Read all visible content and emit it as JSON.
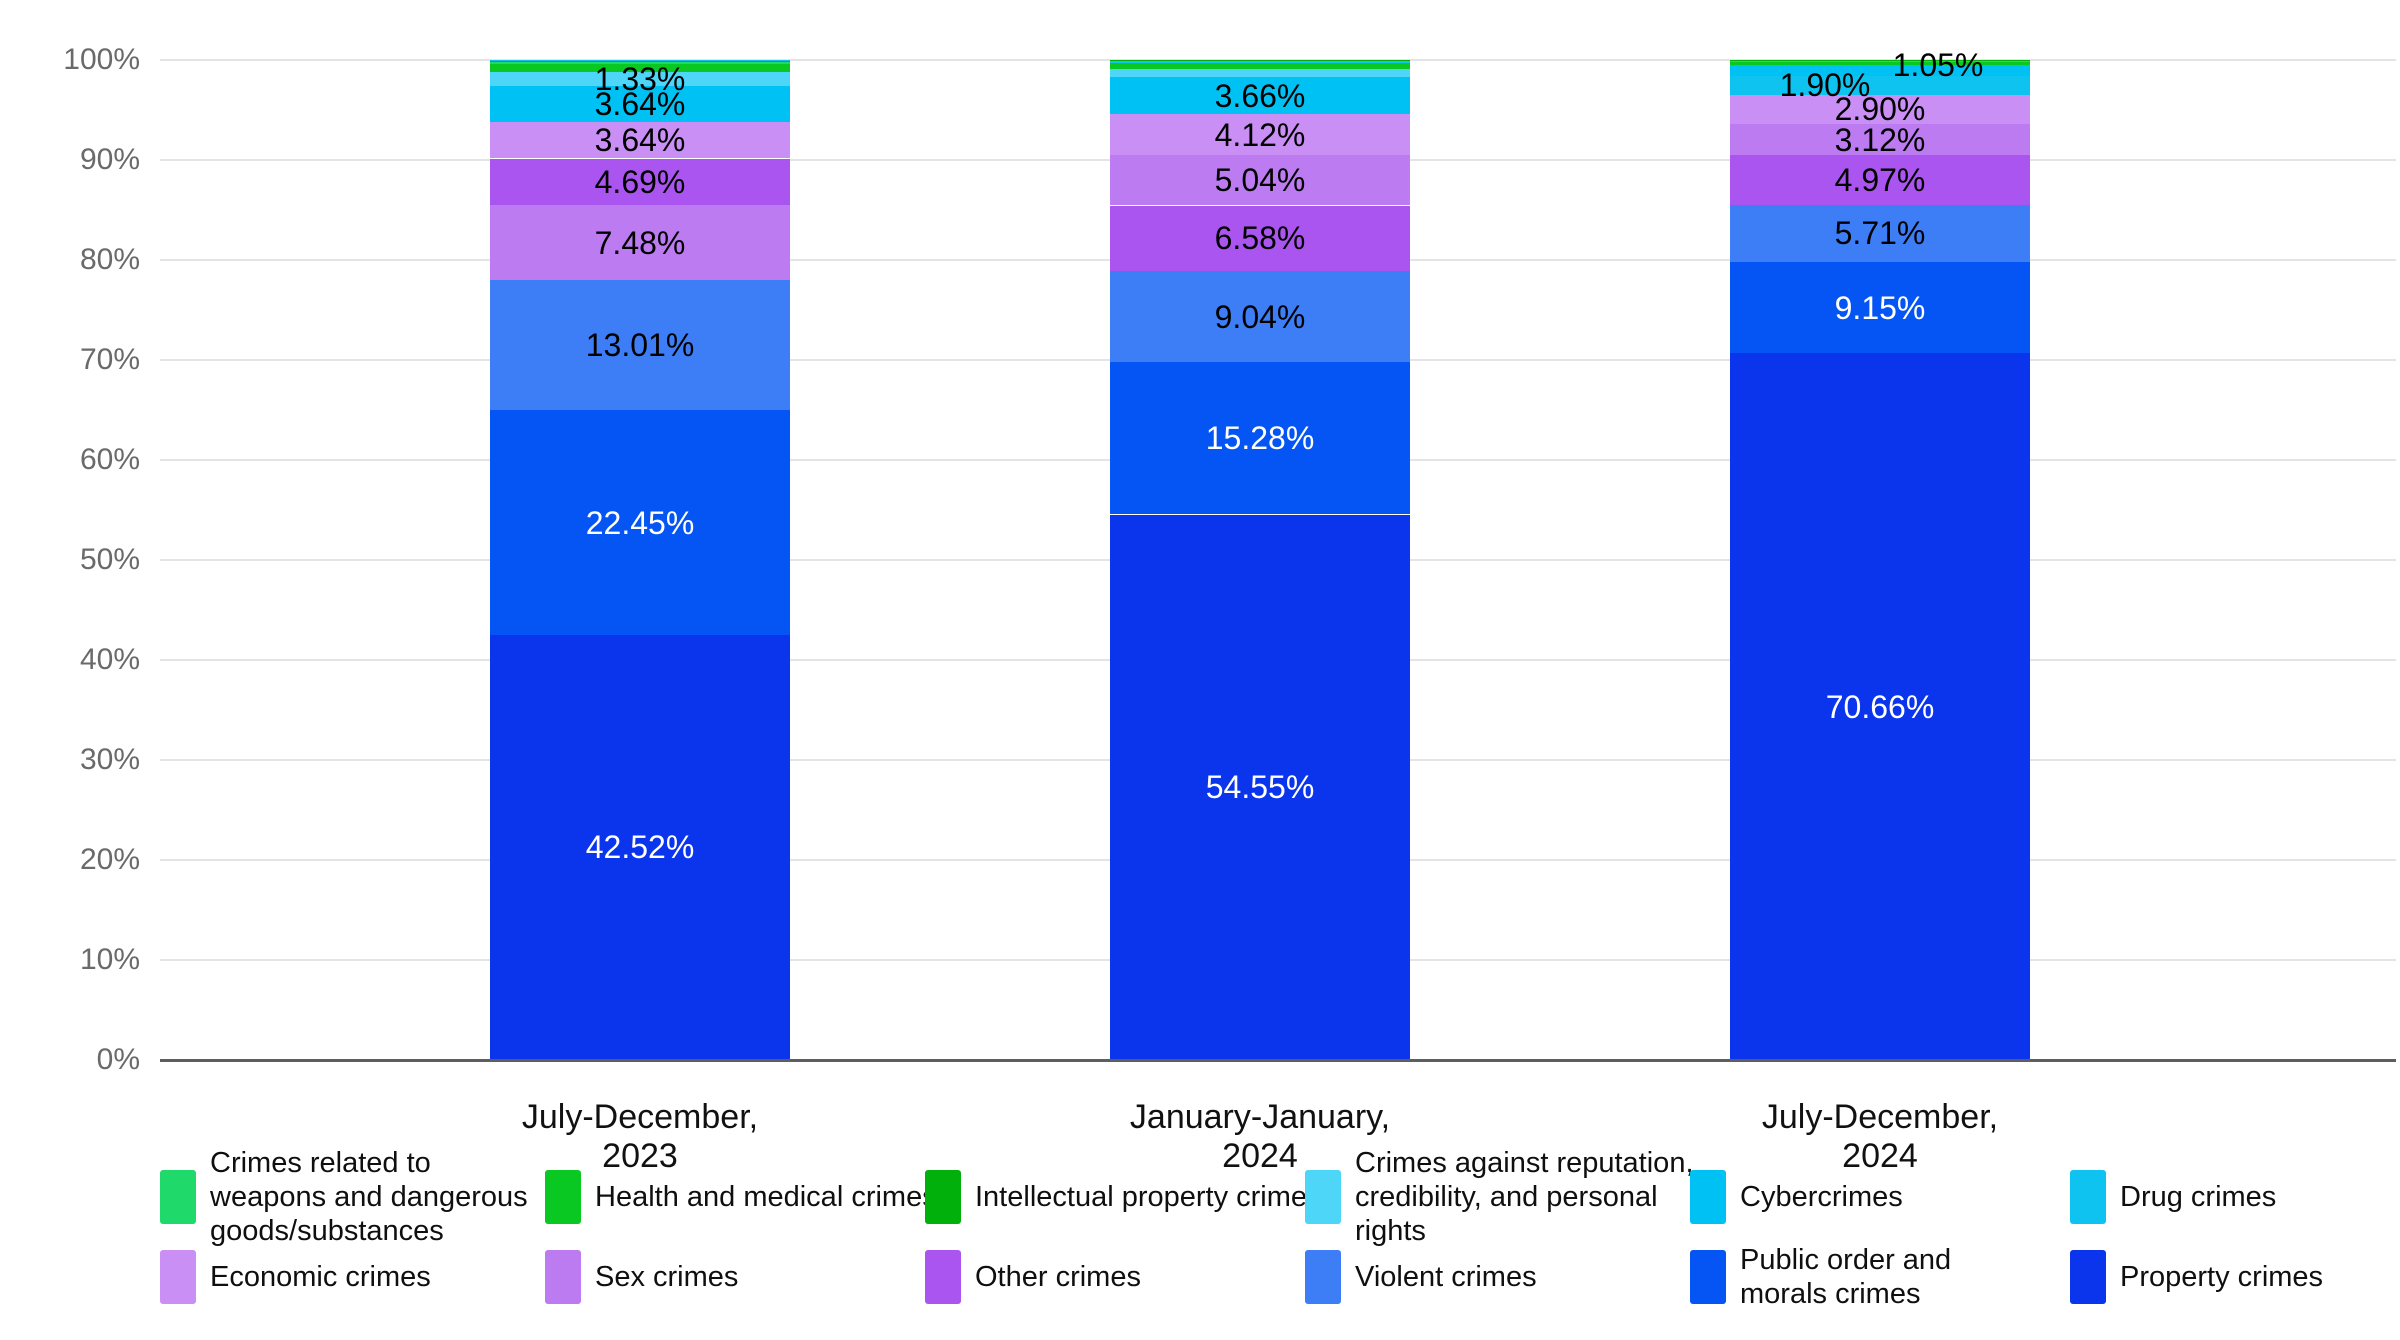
{
  "chart_data": {
    "type": "bar",
    "variant": "100-percent-stacked-column",
    "title": "",
    "grid": "horizontal-on",
    "legend_position": "bottom",
    "categories": [
      "July-December, 2023",
      "January-January, 2024",
      "July-December, 2024"
    ],
    "y_axis": {
      "min": 0,
      "max": 100,
      "tick_labels": [
        "0%",
        "10%",
        "20%",
        "30%",
        "40%",
        "50%",
        "60%",
        "70%",
        "80%",
        "90%",
        "100%"
      ]
    },
    "legend": [
      {
        "label": "Crimes related to\nweapons and dangerous\ngoods/substances",
        "color": "#20D96B"
      },
      {
        "label": "Health and medical crimes",
        "color": "#0AC822"
      },
      {
        "label": "Intellectual property crimes",
        "color": "#02B00C"
      },
      {
        "label": "Crimes against reputation,\ncredibility, and personal\nrights",
        "color": "#4ED6F8"
      },
      {
        "label": "Cybercrimes",
        "color": "#00C1F3"
      },
      {
        "label": "Drug crimes",
        "color": "#0FC3F0"
      },
      {
        "label": "Economic crimes",
        "color": "#C98FF5"
      },
      {
        "label": "Sex crimes",
        "color": "#BD7BF2"
      },
      {
        "label": "Other crimes",
        "color": "#AB55F0"
      },
      {
        "label": "Violent crimes",
        "color": "#3D7EF7"
      },
      {
        "label": "Public order and\nmorals crimes",
        "color": "#0455F4"
      },
      {
        "label": "Property crimes",
        "color": "#0A35ED"
      }
    ],
    "bars": [
      {
        "category": "July-December, 2023",
        "segments_bottom_to_top": [
          {
            "series": "Property crimes",
            "value_pct": 42.52,
            "label": "42.52%",
            "text_color": "#FFFFFF"
          },
          {
            "series": "Public order and\nmorals crimes",
            "value_pct": 22.45,
            "label": "22.45%",
            "text_color": "#FFFFFF"
          },
          {
            "series": "Violent crimes",
            "value_pct": 13.01,
            "label": "13.01%",
            "text_color": "#000000"
          },
          {
            "series": "Sex crimes",
            "value_pct": 7.48,
            "label": "7.48%",
            "text_color": "#000000"
          },
          {
            "series": "Other crimes",
            "value_pct": 4.69,
            "label": "4.69%",
            "text_color": "#000000"
          },
          {
            "series": "Economic crimes",
            "value_pct": 3.64,
            "label": "3.64%",
            "text_color": "#000000"
          },
          {
            "series": "Cybercrimes",
            "value_pct": 3.64,
            "label": "3.64%",
            "text_color": "#000000"
          },
          {
            "series": "Crimes against reputation,\ncredibility, and personal\nrights",
            "value_pct": 1.33,
            "label": "1.33%",
            "text_color": "#000000"
          },
          {
            "series": "Health and medical crimes",
            "value_pct": 0.85,
            "label": null,
            "estimated": true
          },
          {
            "series": "Crimes related to\nweapons and dangerous\ngoods/substances",
            "value_pct": 0.25,
            "label": null,
            "estimated": true
          },
          {
            "series": "Intellectual property crimes",
            "value_pct": 0.08,
            "label": null,
            "estimated": true
          },
          {
            "series": "Drug crimes",
            "value_pct": 0.06,
            "label": null,
            "estimated": true
          }
        ]
      },
      {
        "category": "January-January, 2024",
        "segments_bottom_to_top": [
          {
            "series": "Property crimes",
            "value_pct": 54.55,
            "label": "54.55%",
            "text_color": "#FFFFFF"
          },
          {
            "series": "Public order and\nmorals crimes",
            "value_pct": 15.28,
            "label": "15.28%",
            "text_color": "#FFFFFF"
          },
          {
            "series": "Violent crimes",
            "value_pct": 9.04,
            "label": "9.04%",
            "text_color": "#000000"
          },
          {
            "series": "Other crimes",
            "value_pct": 6.58,
            "label": "6.58%",
            "text_color": "#000000"
          },
          {
            "series": "Sex crimes",
            "value_pct": 5.04,
            "label": "5.04%",
            "text_color": "#000000"
          },
          {
            "series": "Economic crimes",
            "value_pct": 4.12,
            "label": "4.12%",
            "text_color": "#000000"
          },
          {
            "series": "Cybercrimes",
            "value_pct": 3.66,
            "label": "3.66%",
            "text_color": "#000000"
          },
          {
            "series": "Crimes against reputation,\ncredibility, and personal\nrights",
            "value_pct": 0.8,
            "label": null,
            "estimated": true
          },
          {
            "series": "Health and medical crimes",
            "value_pct": 0.68,
            "label": null,
            "estimated": true
          },
          {
            "series": "Drug crimes",
            "value_pct": 0.1,
            "label": null,
            "estimated": true
          },
          {
            "series": "Crimes related to\nweapons and dangerous\ngoods/substances",
            "value_pct": 0.1,
            "label": null,
            "estimated": true
          },
          {
            "series": "Intellectual property crimes",
            "value_pct": 0.05,
            "label": null,
            "estimated": true
          }
        ]
      },
      {
        "category": "July-December, 2024",
        "segments_bottom_to_top": [
          {
            "series": "Property crimes",
            "value_pct": 70.66,
            "label": "70.66%",
            "text_color": "#FFFFFF"
          },
          {
            "series": "Public order and\nmorals crimes",
            "value_pct": 9.15,
            "label": "9.15%",
            "text_color": "#FFFFFF"
          },
          {
            "series": "Violent crimes",
            "value_pct": 5.71,
            "label": "5.71%",
            "text_color": "#000000"
          },
          {
            "series": "Other crimes",
            "value_pct": 4.97,
            "label": "4.97%",
            "text_color": "#000000"
          },
          {
            "series": "Sex crimes",
            "value_pct": 3.12,
            "label": "3.12%",
            "text_color": "#000000"
          },
          {
            "series": "Economic crimes",
            "value_pct": 2.9,
            "label": "2.90%",
            "text_color": "#000000"
          },
          {
            "series": "Drug crimes",
            "value_pct": 1.9,
            "label": "1.90%",
            "text_color": "#000000",
            "label_dx": -55,
            "label_dy": 0
          },
          {
            "series": "Cybercrimes",
            "value_pct": 1.05,
            "label": "1.05%",
            "text_color": "#000000",
            "label_dx": 58,
            "label_dy": -6
          },
          {
            "series": "Health and medical crimes",
            "value_pct": 0.35,
            "label": null,
            "estimated": true
          },
          {
            "series": "Crimes related to\nweapons and dangerous\ngoods/substances",
            "value_pct": 0.1,
            "label": null,
            "estimated": true
          },
          {
            "series": "Crimes against reputation,\ncredibility, and personal\nrights",
            "value_pct": 0.05,
            "label": null,
            "estimated": true
          },
          {
            "series": "Intellectual property crimes",
            "value_pct": 0.04,
            "label": null,
            "estimated": true
          }
        ]
      }
    ]
  }
}
